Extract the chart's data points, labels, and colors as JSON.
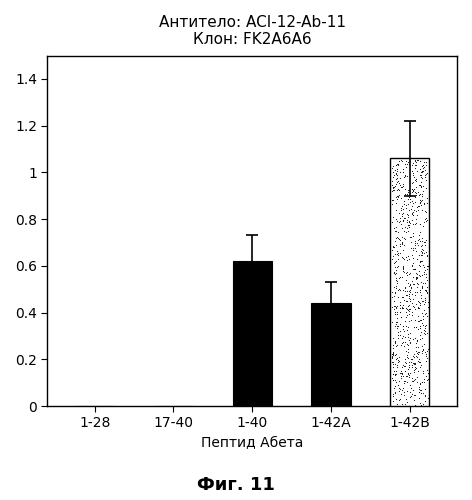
{
  "categories": [
    "1-28",
    "17-40",
    "1-40",
    "1-42A",
    "1-42B"
  ],
  "values": [
    0.0,
    0.0,
    0.62,
    0.44,
    1.06
  ],
  "errors": [
    0.0,
    0.0,
    0.11,
    0.09,
    0.16
  ],
  "title_line1": "Антитело: ACI-12-Ab-11",
  "title_line2": "Клон: FK2A6A6",
  "xlabel": "Пептид Абета",
  "caption": "Фиг. 11",
  "ylim": [
    0,
    1.5
  ],
  "yticks": [
    0,
    0.2,
    0.4,
    0.6,
    0.8,
    1,
    1.2,
    1.4
  ],
  "ytick_labels": [
    "0",
    "0.2",
    "0.4",
    "0.6",
    "0.8",
    "1",
    "1.2",
    "1.4"
  ],
  "background_color": "#ffffff",
  "plot_bg_color": "#ffffff",
  "title_fontsize": 11,
  "label_fontsize": 10,
  "tick_fontsize": 10,
  "caption_fontsize": 13
}
